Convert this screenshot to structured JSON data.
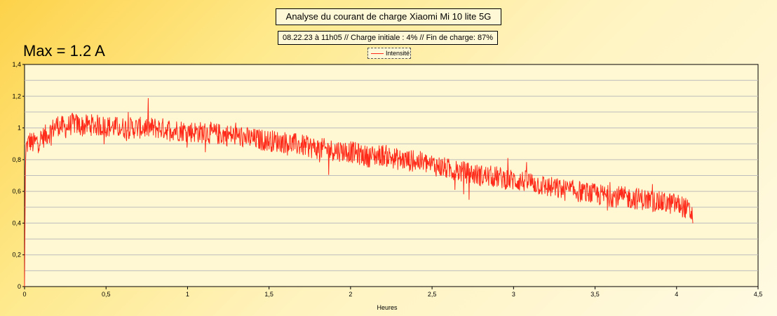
{
  "annotation": "Max = 1.2 A",
  "chart_data": {
    "type": "line",
    "title": "Analyse du courant de charge Xiaomi Mi 10 lite 5G",
    "subtitle": "08.22.23 à 11h05 // Charge initiale : 4% // Fin de charge: 87%",
    "xlabel": "Heures",
    "ylabel": "",
    "xlim": [
      0,
      4.5
    ],
    "ylim": [
      0,
      1.4
    ],
    "x_ticks": [
      "0",
      "0,5",
      "1",
      "1,5",
      "2",
      "2,5",
      "3",
      "3,5",
      "4",
      "4,5"
    ],
    "y_ticks": [
      "0",
      "0,2",
      "0,4",
      "0,6",
      "0,8",
      "1",
      "1,2",
      "1,4"
    ],
    "grid": true,
    "legend": "top-center",
    "line_color": "#ff2a1a",
    "series": [
      {
        "name": "Intensité",
        "x": [
          0,
          0.005,
          0.01,
          0.03,
          0.05,
          0.1,
          0.15,
          0.2,
          0.25,
          0.3,
          0.35,
          0.4,
          0.5,
          0.6,
          0.7,
          0.8,
          0.9,
          1.0,
          1.1,
          1.2,
          1.3,
          1.4,
          1.5,
          1.6,
          1.7,
          1.8,
          1.9,
          2.0,
          2.1,
          2.2,
          2.3,
          2.4,
          2.5,
          2.6,
          2.7,
          2.8,
          2.9,
          3.0,
          3.1,
          3.2,
          3.3,
          3.4,
          3.5,
          3.6,
          3.7,
          3.8,
          3.9,
          4.0,
          4.05,
          4.1
        ],
        "y": [
          0.0,
          0.75,
          0.88,
          0.92,
          0.9,
          0.93,
          0.97,
          1.02,
          1.0,
          1.03,
          1.01,
          1.02,
          1.01,
          1.0,
          1.0,
          1.0,
          0.99,
          0.98,
          0.97,
          0.96,
          0.95,
          0.93,
          0.92,
          0.91,
          0.89,
          0.87,
          0.86,
          0.85,
          0.82,
          0.83,
          0.8,
          0.79,
          0.77,
          0.74,
          0.72,
          0.7,
          0.69,
          0.67,
          0.66,
          0.63,
          0.61,
          0.6,
          0.58,
          0.57,
          0.56,
          0.55,
          0.53,
          0.52,
          0.5,
          0.45
        ],
        "noise": 0.07
      }
    ]
  }
}
